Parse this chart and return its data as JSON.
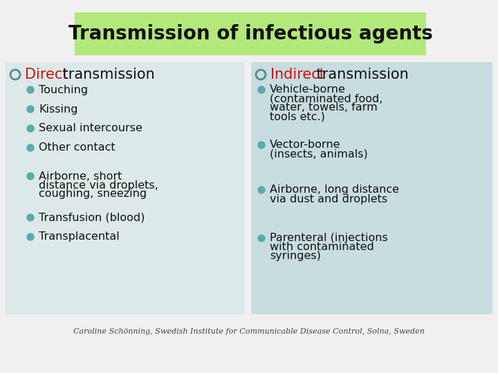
{
  "title": "Transmission of infectious agents",
  "title_bg": "#b3e87a",
  "bg_color": "#f0f0f0",
  "left_box_bg": "#dde9e9",
  "right_box_bg": "#c8dde0",
  "left_header_red": "Direct",
  "left_header_rest": " transmission",
  "right_header_red": "Indirect",
  "right_header_rest": " transmission",
  "bullet_color": "#5aabae",
  "circle_edge_color": "#5a8a8a",
  "left_items": [
    "Touching",
    "Kissing",
    "Sexual intercourse",
    "Other contact",
    "Airborne, short\ndistance via droplets,\ncoughing, sneezing",
    "Transfusion (blood)",
    "Transplacental"
  ],
  "right_items": [
    "Vehicle-borne\n(contaminated food,\nwater, towels, farm\ntools etc.)",
    "Vector-borne\n(insects, animals)",
    "Airborne, long distance\nvia dust and droplets",
    "Parenteral (injections\nwith contaminated\nsyringes)"
  ],
  "footer": "Caroline Schönning, Swedish Institute for Communicable Disease Control, Solna, Sweden",
  "red_color": "#cc1111",
  "text_color": "#111111",
  "title_fontsize": 20,
  "header_fontsize": 15,
  "item_fontsize": 11.5,
  "footer_fontsize": 8
}
